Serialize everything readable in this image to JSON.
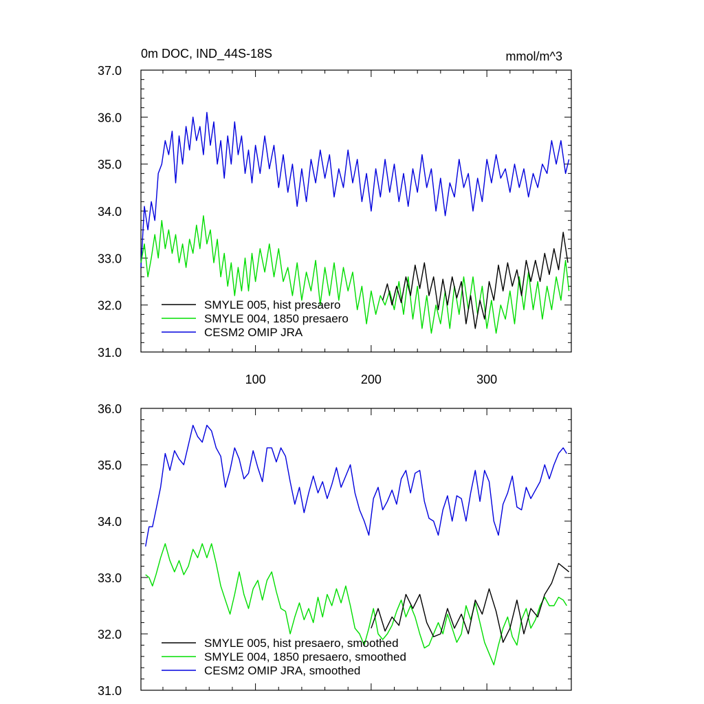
{
  "chart_data": [
    {
      "type": "line",
      "title": "0m DOC, IND_44S-18S",
      "units": "mmol/m^3",
      "xlim": [
        1,
        373
      ],
      "ylim": [
        31.0,
        37.0
      ],
      "x_ticks": [
        100,
        200,
        300
      ],
      "y_ticks": [
        "31.0",
        "32.0",
        "33.0",
        "34.0",
        "35.0",
        "36.0",
        "37.0"
      ],
      "series": [
        {
          "name": "SMYLE 005, hist presaero",
          "color": "#000000",
          "x": [
            210,
            214,
            218,
            222,
            226,
            230,
            234,
            238,
            242,
            246,
            250,
            254,
            258,
            262,
            266,
            270,
            274,
            278,
            282,
            286,
            290,
            294,
            298,
            302,
            306,
            310,
            314,
            318,
            322,
            326,
            330,
            334,
            338,
            342,
            346,
            350,
            354,
            358,
            362,
            366,
            370
          ],
          "values": [
            32.1,
            32.45,
            32.0,
            32.4,
            32.05,
            32.6,
            32.2,
            32.85,
            32.35,
            32.9,
            32.2,
            32.6,
            31.9,
            32.55,
            32.0,
            32.6,
            32.15,
            32.5,
            31.6,
            32.2,
            31.5,
            32.1,
            31.7,
            32.5,
            32.1,
            32.85,
            32.3,
            32.9,
            32.4,
            32.75,
            32.2,
            32.95,
            32.5,
            32.95,
            32.5,
            33.1,
            32.65,
            33.2,
            32.75,
            33.55,
            32.9
          ]
        },
        {
          "name": "SMYLE 004, 1850 presaero",
          "color": "#00dd00",
          "x": [
            1,
            4,
            7,
            10,
            13,
            16,
            19,
            22,
            25,
            28,
            31,
            34,
            37,
            40,
            43,
            46,
            49,
            52,
            55,
            58,
            61,
            64,
            67,
            70,
            73,
            76,
            79,
            82,
            85,
            88,
            91,
            94,
            97,
            100,
            104,
            108,
            112,
            116,
            120,
            124,
            128,
            132,
            136,
            140,
            144,
            148,
            152,
            156,
            160,
            164,
            168,
            172,
            176,
            180,
            184,
            188,
            192,
            196,
            200,
            204,
            208,
            212,
            216,
            220,
            224,
            228,
            232,
            236,
            240,
            244,
            248,
            252,
            256,
            260,
            264,
            268,
            272,
            276,
            280,
            284,
            288,
            292,
            296,
            300,
            304,
            308,
            312,
            316,
            320,
            324,
            328,
            332,
            336,
            340,
            344,
            348,
            352,
            356,
            360,
            364,
            368,
            371
          ],
          "values": [
            32.9,
            33.3,
            32.6,
            33.0,
            33.5,
            33.0,
            33.8,
            33.2,
            33.6,
            33.1,
            33.5,
            32.9,
            33.3,
            32.8,
            33.4,
            33.1,
            33.7,
            33.2,
            33.9,
            33.3,
            33.6,
            32.9,
            33.4,
            32.6,
            33.1,
            32.4,
            32.9,
            32.2,
            32.8,
            32.3,
            33.0,
            32.3,
            33.1,
            32.5,
            33.2,
            32.7,
            33.3,
            32.6,
            33.2,
            32.5,
            32.8,
            32.2,
            32.9,
            32.1,
            32.7,
            32.3,
            32.95,
            32.0,
            32.8,
            32.2,
            32.9,
            32.1,
            32.8,
            32.3,
            32.7,
            31.9,
            32.4,
            31.6,
            32.3,
            31.8,
            32.2,
            32.0,
            32.3,
            31.9,
            32.5,
            31.8,
            32.6,
            31.7,
            32.4,
            31.5,
            32.2,
            31.4,
            32.0,
            31.6,
            32.3,
            31.5,
            32.4,
            31.8,
            32.6,
            31.9,
            32.6,
            31.8,
            32.4,
            31.5,
            32.1,
            31.4,
            32.0,
            31.7,
            32.3,
            31.6,
            32.6,
            31.9,
            32.7,
            31.9,
            32.5,
            31.7,
            32.4,
            31.9,
            32.6,
            32.1,
            32.95,
            32.3
          ]
        },
        {
          "name": "CESM2 OMIP JRA",
          "color": "#0000dd",
          "x": [
            1,
            4,
            7,
            10,
            13,
            16,
            19,
            22,
            25,
            28,
            31,
            34,
            37,
            40,
            43,
            46,
            49,
            52,
            55,
            58,
            61,
            64,
            67,
            70,
            73,
            76,
            79,
            82,
            85,
            88,
            91,
            94,
            97,
            100,
            104,
            108,
            112,
            116,
            120,
            124,
            128,
            132,
            136,
            140,
            144,
            148,
            152,
            156,
            160,
            164,
            168,
            172,
            176,
            180,
            184,
            188,
            192,
            196,
            200,
            204,
            208,
            212,
            216,
            220,
            224,
            228,
            232,
            236,
            240,
            244,
            248,
            252,
            256,
            260,
            264,
            268,
            272,
            276,
            280,
            284,
            288,
            292,
            296,
            300,
            304,
            308,
            312,
            316,
            320,
            324,
            328,
            332,
            336,
            340,
            344,
            348,
            352,
            356,
            360,
            364,
            368,
            371
          ],
          "values": [
            32.8,
            34.1,
            33.6,
            34.2,
            33.8,
            34.8,
            35.0,
            35.5,
            35.2,
            35.7,
            34.6,
            35.6,
            35.0,
            35.8,
            35.3,
            36.0,
            35.5,
            35.8,
            35.2,
            36.1,
            35.4,
            35.9,
            35.0,
            35.5,
            34.7,
            35.6,
            35.0,
            35.9,
            35.2,
            35.6,
            34.8,
            35.3,
            34.6,
            35.4,
            34.8,
            35.6,
            34.9,
            35.4,
            34.5,
            35.2,
            34.4,
            35.0,
            34.1,
            34.9,
            34.2,
            35.1,
            34.6,
            35.3,
            34.7,
            35.2,
            34.3,
            34.9,
            34.5,
            35.3,
            34.6,
            35.1,
            34.2,
            34.8,
            34.0,
            34.9,
            34.3,
            35.1,
            34.4,
            35.0,
            34.2,
            34.8,
            34.1,
            34.9,
            34.4,
            35.2,
            34.5,
            34.9,
            34.0,
            34.7,
            33.9,
            34.6,
            34.3,
            35.1,
            34.5,
            34.8,
            34.0,
            34.7,
            34.2,
            35.1,
            34.6,
            35.2,
            34.7,
            34.9,
            34.4,
            35.0,
            34.5,
            34.9,
            34.3,
            34.8,
            34.5,
            35.0,
            34.8,
            35.5,
            35.0,
            35.5,
            34.8,
            35.1
          ]
        }
      ],
      "legend": [
        "SMYLE 005, hist presaero",
        "SMYLE 004, 1850 presaero",
        "CESM2 OMIP JRA"
      ],
      "legend_placement": "bottom-left"
    },
    {
      "type": "line",
      "xlim": [
        1,
        373
      ],
      "ylim": [
        31.0,
        36.0
      ],
      "y_ticks": [
        "31.0",
        "32.0",
        "33.0",
        "34.0",
        "35.0",
        "36.0"
      ],
      "series": [
        {
          "name": "SMYLE 005, hist presaero, smoothed",
          "color": "#000000",
          "x": [
            200,
            206,
            212,
            218,
            224,
            230,
            236,
            242,
            248,
            254,
            260,
            266,
            272,
            278,
            284,
            290,
            296,
            302,
            308,
            314,
            320,
            326,
            332,
            338,
            344,
            350,
            356,
            362,
            368,
            371
          ],
          "values": [
            32.1,
            32.45,
            32.05,
            32.3,
            32.15,
            32.7,
            32.45,
            32.7,
            32.2,
            31.95,
            32.0,
            32.45,
            32.1,
            32.35,
            32.0,
            32.6,
            32.35,
            32.8,
            32.4,
            31.85,
            32.1,
            32.6,
            32.0,
            32.45,
            32.3,
            32.7,
            32.9,
            33.25,
            33.15,
            33.1
          ]
        },
        {
          "name": "SMYLE 004, 1850 presaero, smoothed",
          "color": "#00dd00",
          "x": [
            5,
            8,
            11,
            14,
            18,
            22,
            26,
            30,
            34,
            38,
            42,
            46,
            50,
            54,
            58,
            62,
            66,
            70,
            74,
            78,
            82,
            86,
            90,
            94,
            98,
            102,
            106,
            110,
            114,
            118,
            122,
            126,
            130,
            134,
            138,
            142,
            146,
            150,
            154,
            158,
            162,
            166,
            170,
            174,
            178,
            182,
            186,
            190,
            194,
            198,
            202,
            206,
            210,
            214,
            218,
            222,
            226,
            230,
            234,
            238,
            242,
            246,
            250,
            254,
            258,
            262,
            266,
            270,
            274,
            278,
            282,
            286,
            290,
            294,
            298,
            302,
            306,
            310,
            314,
            318,
            322,
            326,
            330,
            334,
            338,
            342,
            346,
            350,
            354,
            358,
            362,
            366,
            369
          ],
          "values": [
            33.05,
            33.0,
            32.85,
            33.05,
            33.35,
            33.6,
            33.3,
            33.1,
            33.3,
            33.05,
            33.2,
            33.5,
            33.35,
            33.6,
            33.35,
            33.6,
            33.25,
            32.85,
            32.6,
            32.35,
            32.7,
            33.1,
            32.7,
            32.45,
            32.8,
            32.95,
            32.6,
            32.95,
            33.1,
            32.75,
            32.45,
            32.4,
            32.0,
            32.3,
            32.55,
            32.25,
            32.45,
            32.2,
            32.65,
            32.3,
            32.7,
            32.5,
            32.8,
            32.55,
            32.85,
            32.5,
            32.1,
            32.0,
            31.8,
            32.1,
            32.45,
            32.0,
            31.9,
            32.0,
            32.15,
            32.4,
            32.6,
            32.3,
            32.5,
            32.3,
            32.0,
            31.75,
            31.8,
            32.0,
            32.2,
            32.0,
            32.35,
            32.1,
            31.85,
            32.0,
            32.5,
            32.25,
            32.55,
            32.2,
            31.85,
            31.65,
            31.45,
            31.8,
            32.1,
            32.3,
            31.95,
            31.8,
            32.25,
            32.45,
            32.1,
            32.25,
            32.5,
            32.65,
            32.5,
            32.5,
            32.65,
            32.6,
            32.5
          ]
        },
        {
          "name": "CESM2 OMIP JRA, smoothed",
          "color": "#0000dd",
          "x": [
            5,
            8,
            11,
            14,
            18,
            22,
            26,
            30,
            34,
            38,
            42,
            46,
            50,
            54,
            58,
            62,
            66,
            70,
            74,
            78,
            82,
            86,
            90,
            94,
            98,
            102,
            106,
            110,
            114,
            118,
            122,
            126,
            130,
            134,
            138,
            142,
            146,
            150,
            154,
            158,
            162,
            166,
            170,
            174,
            178,
            182,
            186,
            190,
            194,
            198,
            202,
            206,
            210,
            214,
            218,
            222,
            226,
            230,
            234,
            238,
            242,
            246,
            250,
            254,
            258,
            262,
            266,
            270,
            274,
            278,
            282,
            286,
            290,
            294,
            298,
            302,
            306,
            310,
            314,
            318,
            322,
            326,
            330,
            334,
            338,
            342,
            346,
            350,
            354,
            358,
            362,
            366,
            369
          ],
          "values": [
            33.55,
            33.9,
            33.9,
            34.2,
            34.6,
            35.2,
            34.9,
            35.25,
            35.1,
            35.0,
            35.35,
            35.7,
            35.5,
            35.4,
            35.7,
            35.6,
            35.3,
            35.15,
            34.6,
            34.9,
            35.3,
            35.1,
            34.75,
            34.85,
            35.25,
            34.95,
            34.7,
            35.3,
            35.3,
            35.05,
            35.3,
            35.15,
            34.7,
            34.3,
            34.6,
            34.15,
            34.5,
            34.8,
            34.5,
            34.7,
            34.4,
            34.65,
            34.95,
            34.6,
            34.8,
            35.0,
            34.5,
            34.2,
            34.0,
            33.75,
            34.4,
            34.6,
            34.2,
            34.35,
            34.55,
            34.3,
            34.75,
            34.9,
            34.5,
            34.85,
            34.9,
            34.35,
            34.05,
            34.0,
            33.75,
            34.2,
            34.45,
            34.0,
            34.45,
            34.4,
            34.0,
            34.5,
            34.9,
            34.35,
            34.9,
            34.7,
            34.0,
            33.75,
            34.3,
            34.5,
            34.8,
            34.25,
            34.2,
            34.6,
            34.4,
            34.55,
            34.7,
            35.0,
            34.75,
            35.0,
            35.2,
            35.3,
            35.2
          ]
        }
      ],
      "legend": [
        "SMYLE 005, hist presaero, smoothed",
        "SMYLE 004, 1850 presaero, smoothed",
        "CESM2 OMIP JRA, smoothed"
      ],
      "legend_placement": "bottom-left"
    }
  ]
}
